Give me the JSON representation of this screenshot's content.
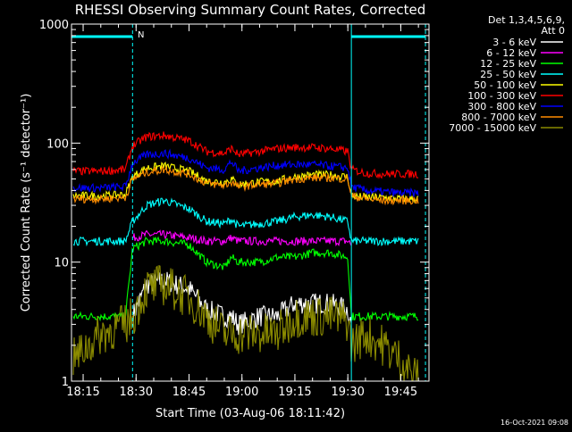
{
  "chart_data": {
    "type": "line",
    "title": "RHESSI Observing Summary Count Rates, Corrected",
    "xlabel": "Start Time (03-Aug-06 18:11:42)",
    "ylabel": "Corrected Count Rate (s⁻¹ detector⁻¹)",
    "yscale": "log",
    "ylim": [
      1,
      1000
    ],
    "xlim": [
      "18:11:42",
      "19:53:00"
    ],
    "x_ticks": [
      "18:15",
      "18:30",
      "18:45",
      "19:00",
      "19:15",
      "19:30",
      "19:45"
    ],
    "y_ticks": [
      "1",
      "10",
      "100",
      "1000"
    ],
    "detectors": "Det 1,3,4,5,6,9,",
    "attenuator": "Att 0",
    "timestamp": "16-Oct-2021 09:08",
    "night_marker": "N",
    "night_intervals": [
      [
        "18:11:42",
        "18:29:00"
      ],
      [
        "19:31:00",
        "19:52:00"
      ]
    ],
    "grid": false,
    "legend_position": "top-right",
    "x_times": [
      "18:12",
      "18:20",
      "18:27",
      "18:29",
      "18:33",
      "18:38",
      "18:45",
      "18:50",
      "18:55",
      "18:57",
      "18:59",
      "19:05",
      "19:10",
      "19:15",
      "19:20",
      "19:25",
      "19:30",
      "19:31",
      "19:35",
      "19:40",
      "19:45",
      "19:50"
    ],
    "series": [
      {
        "name": "3 - 6 keV",
        "color": "#ffffff",
        "values": [
          null,
          null,
          null,
          3.5,
          6.5,
          7,
          6,
          4,
          3.5,
          3.5,
          3,
          3.5,
          3.5,
          4.5,
          4.5,
          4.5,
          4,
          3,
          null,
          null,
          null,
          null
        ]
      },
      {
        "name": "6 - 12 keV",
        "color": "#ff00ff",
        "values": [
          null,
          null,
          null,
          16,
          17,
          17,
          16,
          15,
          15,
          16,
          15,
          15,
          15,
          15,
          15,
          15,
          15,
          14,
          null,
          null,
          null,
          null
        ]
      },
      {
        "name": "12 - 25 keV",
        "color": "#00ff00",
        "values": [
          3.5,
          3.5,
          3.5,
          13,
          15,
          15,
          14,
          10,
          9,
          11,
          10,
          10,
          11,
          11,
          12,
          12,
          11,
          3.5,
          3.5,
          3.5,
          3.5,
          3.5
        ]
      },
      {
        "name": "25 - 50 keV",
        "color": "#00ffff",
        "values": [
          15,
          15,
          15,
          22,
          30,
          33,
          28,
          22,
          21,
          23,
          20,
          21,
          22,
          24,
          25,
          24,
          22,
          15,
          15,
          15,
          15,
          15
        ]
      },
      {
        "name": "50 - 100 keV",
        "color": "#ffff00",
        "values": [
          36,
          36,
          37,
          52,
          62,
          64,
          58,
          48,
          47,
          50,
          45,
          47,
          48,
          52,
          54,
          54,
          52,
          36,
          35,
          35,
          34,
          34
        ]
      },
      {
        "name": "100 - 300 keV",
        "color": "#ff0000",
        "values": [
          58,
          58,
          60,
          95,
          113,
          116,
          105,
          85,
          82,
          90,
          80,
          85,
          90,
          92,
          92,
          90,
          85,
          60,
          56,
          55,
          55,
          55
        ]
      },
      {
        "name": "300 - 800 keV",
        "color": "#0000ff",
        "values": [
          42,
          42,
          43,
          68,
          80,
          82,
          75,
          62,
          60,
          70,
          58,
          62,
          65,
          66,
          66,
          64,
          62,
          43,
          40,
          39,
          38,
          38
        ]
      },
      {
        "name": "800 - 7000 keV",
        "color": "#ff8c00",
        "values": [
          34,
          34,
          35,
          50,
          57,
          60,
          55,
          46,
          44,
          47,
          43,
          45,
          46,
          50,
          51,
          51,
          50,
          36,
          34,
          33,
          33,
          33
        ]
      },
      {
        "name": "7000 - 15000 keV",
        "color": "#8b8b00",
        "values": [
          1.5,
          2.5,
          3,
          3.5,
          6,
          6.5,
          5,
          3.5,
          2.5,
          2.5,
          2.5,
          2.5,
          2.5,
          3.5,
          3.5,
          3.5,
          3.2,
          2,
          2.5,
          2,
          1.5,
          1
        ]
      }
    ]
  }
}
